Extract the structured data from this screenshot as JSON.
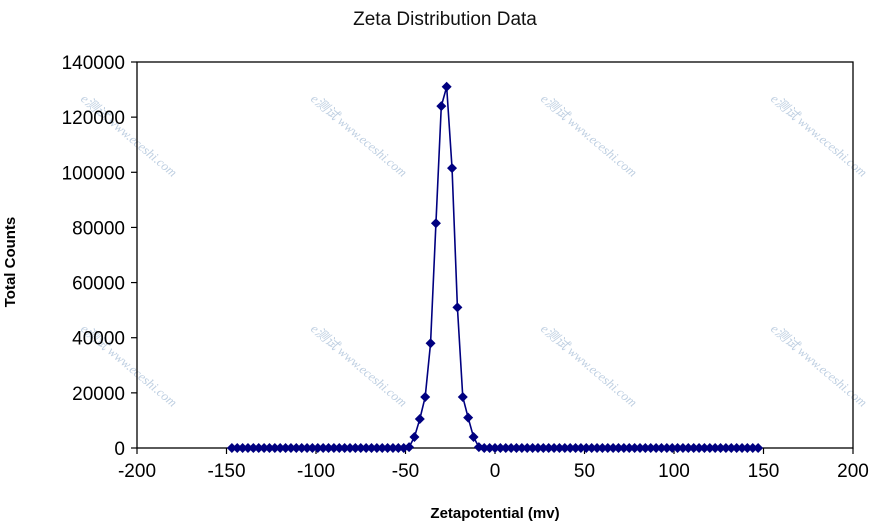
{
  "chart_data": {
    "type": "scatter",
    "title": "Zeta Distribution Data",
    "xlabel": "Zetapotential (mv)",
    "ylabel": "Total Counts",
    "xlim": [
      -200,
      200
    ],
    "ylim": [
      0,
      140000
    ],
    "x_ticks": [
      -200,
      -150,
      -100,
      -50,
      0,
      50,
      100,
      150,
      200
    ],
    "y_ticks": [
      0,
      20000,
      40000,
      60000,
      80000,
      100000,
      120000,
      140000
    ],
    "x_tick_labels": [
      "-200",
      "-150",
      "-100",
      "-50",
      "0",
      "50",
      "100",
      "150",
      "200"
    ],
    "y_tick_labels": [
      "0",
      "20000",
      "40000",
      "60000",
      "80000",
      "100000",
      "120000",
      "140000"
    ],
    "grid": false,
    "legend": "none",
    "watermark": "e测试 www.eceshi.com",
    "colors": {
      "series": "#000080",
      "axis": "#000000"
    },
    "series": [
      {
        "marker": "diamond",
        "line": true,
        "points": [
          [
            -147,
            0
          ],
          [
            -144,
            0
          ],
          [
            -141,
            0
          ],
          [
            -138,
            0
          ],
          [
            -135,
            0
          ],
          [
            -132,
            0
          ],
          [
            -129,
            0
          ],
          [
            -126,
            0
          ],
          [
            -123,
            0
          ],
          [
            -120,
            0
          ],
          [
            -117,
            0
          ],
          [
            -114,
            0
          ],
          [
            -111,
            0
          ],
          [
            -108,
            0
          ],
          [
            -105,
            0
          ],
          [
            -102,
            0
          ],
          [
            -99,
            0
          ],
          [
            -96,
            0
          ],
          [
            -93,
            0
          ],
          [
            -90,
            0
          ],
          [
            -87,
            0
          ],
          [
            -84,
            0
          ],
          [
            -81,
            0
          ],
          [
            -78,
            0
          ],
          [
            -75,
            0
          ],
          [
            -72,
            0
          ],
          [
            -69,
            0
          ],
          [
            -66,
            0
          ],
          [
            -63,
            0
          ],
          [
            -60,
            0
          ],
          [
            -57,
            0
          ],
          [
            -54,
            0
          ],
          [
            -51,
            0
          ],
          [
            -48,
            300
          ],
          [
            -45,
            4000
          ],
          [
            -42,
            10500
          ],
          [
            -39,
            18500
          ],
          [
            -36,
            38000
          ],
          [
            -33,
            81500
          ],
          [
            -30,
            124000
          ],
          [
            -27,
            131000
          ],
          [
            -24,
            101500
          ],
          [
            -21,
            51000
          ],
          [
            -18,
            18500
          ],
          [
            -15,
            11000
          ],
          [
            -12,
            4000
          ],
          [
            -9,
            300
          ],
          [
            -6,
            0
          ],
          [
            -3,
            0
          ],
          [
            0,
            0
          ],
          [
            3,
            0
          ],
          [
            6,
            0
          ],
          [
            9,
            0
          ],
          [
            12,
            0
          ],
          [
            15,
            0
          ],
          [
            18,
            0
          ],
          [
            21,
            0
          ],
          [
            24,
            0
          ],
          [
            27,
            0
          ],
          [
            30,
            0
          ],
          [
            33,
            0
          ],
          [
            36,
            0
          ],
          [
            39,
            0
          ],
          [
            42,
            0
          ],
          [
            45,
            0
          ],
          [
            48,
            0
          ],
          [
            51,
            0
          ],
          [
            54,
            0
          ],
          [
            57,
            0
          ],
          [
            60,
            0
          ],
          [
            63,
            0
          ],
          [
            66,
            0
          ],
          [
            69,
            0
          ],
          [
            72,
            0
          ],
          [
            75,
            0
          ],
          [
            78,
            0
          ],
          [
            81,
            0
          ],
          [
            84,
            0
          ],
          [
            87,
            0
          ],
          [
            90,
            0
          ],
          [
            93,
            0
          ],
          [
            96,
            0
          ],
          [
            99,
            0
          ],
          [
            102,
            0
          ],
          [
            105,
            0
          ],
          [
            108,
            0
          ],
          [
            111,
            0
          ],
          [
            114,
            0
          ],
          [
            117,
            0
          ],
          [
            120,
            0
          ],
          [
            123,
            0
          ],
          [
            126,
            0
          ],
          [
            129,
            0
          ],
          [
            132,
            0
          ],
          [
            135,
            0
          ],
          [
            138,
            0
          ],
          [
            141,
            0
          ],
          [
            144,
            0
          ],
          [
            147,
            0
          ]
        ]
      }
    ]
  }
}
